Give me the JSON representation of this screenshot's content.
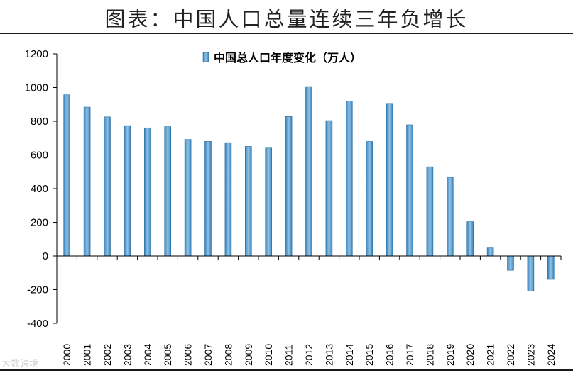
{
  "page_title": "图表：中国人口总量连续三年负增长",
  "watermark": "大数跨境",
  "colors": {
    "bar_fill": "#5b9fd3",
    "bar_edge": "#2d6e9e",
    "axis": "#000000",
    "text": "#000000"
  },
  "chart_data": {
    "type": "bar",
    "title": "",
    "xlabel": "",
    "ylabel": "",
    "ylim": [
      -400,
      1200
    ],
    "yticks": [
      -400,
      -200,
      0,
      200,
      400,
      600,
      800,
      1000,
      1200
    ],
    "grid": false,
    "legend_position": "top",
    "categories": [
      "2000",
      "2001",
      "2002",
      "2003",
      "2004",
      "2005",
      "2006",
      "2007",
      "2008",
      "2009",
      "2010",
      "2011",
      "2012",
      "2013",
      "2014",
      "2015",
      "2016",
      "2017",
      "2018",
      "2019",
      "2020",
      "2021",
      "2022",
      "2023",
      "2024"
    ],
    "series": [
      {
        "name": "中国总人口年度变化（万人）",
        "values": [
          957,
          884,
          826,
          774,
          761,
          768,
          692,
          681,
          673,
          651,
          641,
          828,
          1006,
          804,
          920,
          680,
          906,
          779,
          530,
          467,
          204,
          48,
          -85,
          -208,
          -139
        ]
      }
    ]
  }
}
